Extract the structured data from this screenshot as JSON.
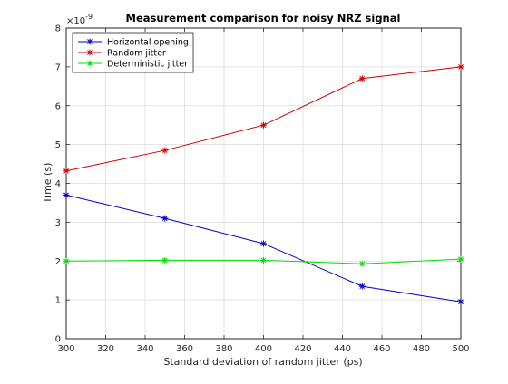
{
  "chart_data": {
    "type": "line",
    "title": "Measurement comparison for noisy NRZ signal",
    "xlabel": "Standard deviation of random jitter (ps)",
    "ylabel": "Time (s)",
    "y_exponent_label": "×10",
    "y_exponent_power": "-9",
    "xlim": [
      300,
      500
    ],
    "ylim": [
      0,
      8
    ],
    "x_ticks": [
      300,
      320,
      340,
      360,
      380,
      400,
      420,
      440,
      460,
      480,
      500
    ],
    "y_ticks": [
      0,
      1,
      2,
      3,
      4,
      5,
      6,
      7,
      8
    ],
    "grid": true,
    "legend_position": "top-left",
    "x": [
      300,
      350,
      400,
      450,
      500
    ],
    "series": [
      {
        "name": "Horizontal opening",
        "color": "#0000cc",
        "marker": "asterisk",
        "values": [
          3.7,
          3.1,
          2.45,
          1.35,
          0.95
        ]
      },
      {
        "name": "Random jitter",
        "color": "#cc0000",
        "marker": "asterisk",
        "values": [
          4.32,
          4.85,
          5.5,
          6.7,
          7.0
        ]
      },
      {
        "name": "Deterministic jitter",
        "color": "#00dd00",
        "marker": "asterisk",
        "values": [
          2.0,
          2.02,
          2.02,
          1.93,
          2.05
        ]
      }
    ]
  }
}
